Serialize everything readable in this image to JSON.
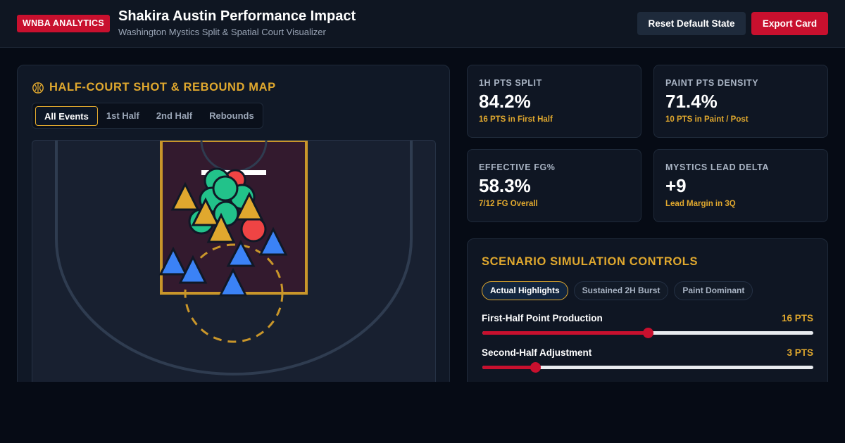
{
  "header": {
    "brand": "WNBA ANALYTICS",
    "title": "Shakira Austin Performance Impact",
    "subtitle": "Washington Mystics Split & Spatial Court Visualizer",
    "reset_label": "Reset Default State",
    "export_label": "Export Card"
  },
  "court_panel": {
    "title": "HALF-COURT SHOT & REBOUND MAP",
    "icon": "basketball-icon",
    "tabs": [
      "All Events",
      "1st Half",
      "2nd Half",
      "Rebounds"
    ],
    "active_tab": "All Events"
  },
  "stats": [
    {
      "label": "1H PTS SPLIT",
      "value": "84.2%",
      "note": "16 PTS in First Half"
    },
    {
      "label": "PAINT PTS DENSITY",
      "value": "71.4%",
      "note": "10 PTS in Paint / Post"
    },
    {
      "label": "EFFECTIVE FG%",
      "value": "58.3%",
      "note": "7/12 FG Overall"
    },
    {
      "label": "MYSTICS LEAD DELTA",
      "value": "+9",
      "note": "Lead Margin in 3Q"
    }
  ],
  "simulation": {
    "title": "SCENARIO SIMULATION CONTROLS",
    "scenarios": [
      "Actual Highlights",
      "Sustained 2H Burst",
      "Paint Dominant"
    ],
    "active_scenario": "Actual Highlights",
    "sliders": [
      {
        "label": "First-Half Point Production",
        "value_text": "16 PTS",
        "fraction": 0.5
      },
      {
        "label": "Second-Half Adjustment",
        "value_text": "3 PTS",
        "fraction": 0.16
      }
    ]
  },
  "colors": {
    "accent_gold": "#e0a82e",
    "brand_red": "#c8102e",
    "made_shot": "#22c28a",
    "missed_shot": "#ef4444",
    "rebound_2h": "#3b82f6"
  }
}
